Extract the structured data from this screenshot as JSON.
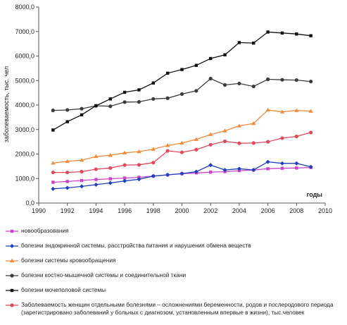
{
  "chart_data": {
    "type": "line",
    "ylabel": "заболеваемость, тыс. чел",
    "xlabel": "годы",
    "xlim": [
      1990,
      2010
    ],
    "ylim": [
      0,
      8000
    ],
    "xticks": [
      1990,
      1992,
      1994,
      1996,
      1998,
      2000,
      2002,
      2004,
      2006,
      2008,
      2010
    ],
    "yticks": [
      "0,0",
      "1000,0",
      "2000,0",
      "3000,0",
      "4000,0",
      "5000,0",
      "6000,0",
      "7000,0",
      "8000,0"
    ],
    "grid": false,
    "legend_position": "bottom",
    "series": [
      {
        "name": "новообразования",
        "color": "#cc44cc",
        "marker": "square",
        "x": [
          1991,
          1992,
          1993,
          1994,
          1995,
          1996,
          1997,
          1998,
          1999,
          2000,
          2001,
          2002,
          2003,
          2004,
          2005,
          2006,
          2007,
          2008,
          2009
        ],
        "y": [
          850,
          880,
          920,
          960,
          990,
          1020,
          1050,
          1100,
          1150,
          1200,
          1230,
          1260,
          1280,
          1320,
          1350,
          1400,
          1420,
          1430,
          1450
        ]
      },
      {
        "name": "болезни эндокринной системы, расстройства питания и нарушения обмена веществ",
        "color": "#1f3fbf",
        "marker": "diamond",
        "x": [
          1991,
          1992,
          1993,
          1994,
          1995,
          1996,
          1997,
          1998,
          1999,
          2000,
          2001,
          2002,
          2003,
          2004,
          2005,
          2006,
          2007,
          2008,
          2009
        ],
        "y": [
          580,
          620,
          680,
          750,
          820,
          900,
          970,
          1100,
          1150,
          1200,
          1280,
          1550,
          1350,
          1400,
          1350,
          1680,
          1620,
          1620,
          1480
        ]
      },
      {
        "name": "болезни системы кровообращения",
        "color": "#f08a3c",
        "marker": "triangle",
        "x": [
          1991,
          1992,
          1993,
          1994,
          1995,
          1996,
          1997,
          1998,
          1999,
          2000,
          2001,
          2002,
          2003,
          2004,
          2005,
          2006,
          2007,
          2008,
          2009
        ],
        "y": [
          1630,
          1700,
          1750,
          1900,
          1950,
          2050,
          2100,
          2200,
          2350,
          2450,
          2600,
          2800,
          2950,
          3150,
          3250,
          3800,
          3720,
          3780,
          3750
        ]
      },
      {
        "name": "болезни костно-мышечной системы и соединительной ткани",
        "color": "#3c3c3c",
        "marker": "circle",
        "x": [
          1991,
          1992,
          1993,
          1994,
          1995,
          1996,
          1997,
          1998,
          1999,
          2000,
          2001,
          2002,
          2003,
          2004,
          2005,
          2006,
          2007,
          2008,
          2009
        ],
        "y": [
          3780,
          3800,
          3850,
          3970,
          3950,
          4120,
          4130,
          4250,
          4280,
          4450,
          4580,
          5080,
          4820,
          4880,
          4760,
          5050,
          5030,
          5020,
          4960
        ]
      },
      {
        "name": "болезни мочеполовой системы",
        "color": "#111111",
        "marker": "square",
        "x": [
          1991,
          1992,
          1993,
          1994,
          1995,
          1996,
          1997,
          1998,
          1999,
          2000,
          2001,
          2002,
          2003,
          2004,
          2005,
          2006,
          2007,
          2008,
          2009
        ],
        "y": [
          2980,
          3320,
          3600,
          3970,
          4250,
          4520,
          4620,
          4900,
          5300,
          5450,
          5620,
          5900,
          6050,
          6550,
          6530,
          6980,
          6940,
          6900,
          6830
        ]
      },
      {
        "name": "Заболеваемость женщин отдельными болезнями – осложнениями беременности, родов и послеродового периода (зарегистрировано заболеваний у больных с диагнозом, установленным впервые в жизни), тыс.человек",
        "color": "#e04a5a",
        "marker": "circle",
        "x": [
          1991,
          1992,
          1993,
          1994,
          1995,
          1996,
          1997,
          1998,
          1999,
          2000,
          2001,
          2002,
          2003,
          2004,
          2005,
          2006,
          2007,
          2008,
          2009
        ],
        "y": [
          1250,
          1250,
          1280,
          1380,
          1430,
          1550,
          1560,
          1650,
          2130,
          2070,
          2180,
          2380,
          2520,
          2440,
          2450,
          2500,
          2650,
          2720,
          2880
        ]
      }
    ]
  }
}
